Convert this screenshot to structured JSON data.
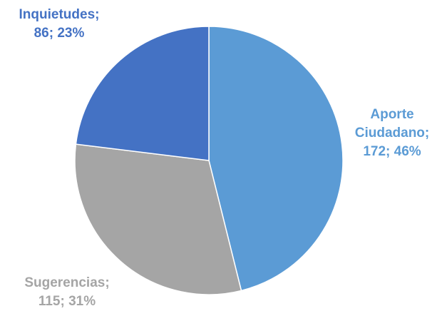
{
  "chart_data": {
    "type": "pie",
    "title": "",
    "slices": [
      {
        "name": "Aporte Ciudadano",
        "value": 172,
        "percent": "46%",
        "color": "#5b9bd5",
        "label_lines": [
          "Aporte",
          "Ciudadano;",
          "172; 46%"
        ]
      },
      {
        "name": "Sugerencias",
        "value": 115,
        "percent": "31%",
        "color": "#a5a5a5",
        "label_lines": [
          "Sugerencias;",
          "115; 31%"
        ]
      },
      {
        "name": "Inquietudes",
        "value": 86,
        "percent": "23%",
        "color": "#4472c4",
        "label_lines": [
          "Inquietudes;",
          "86; 23%"
        ]
      }
    ]
  }
}
